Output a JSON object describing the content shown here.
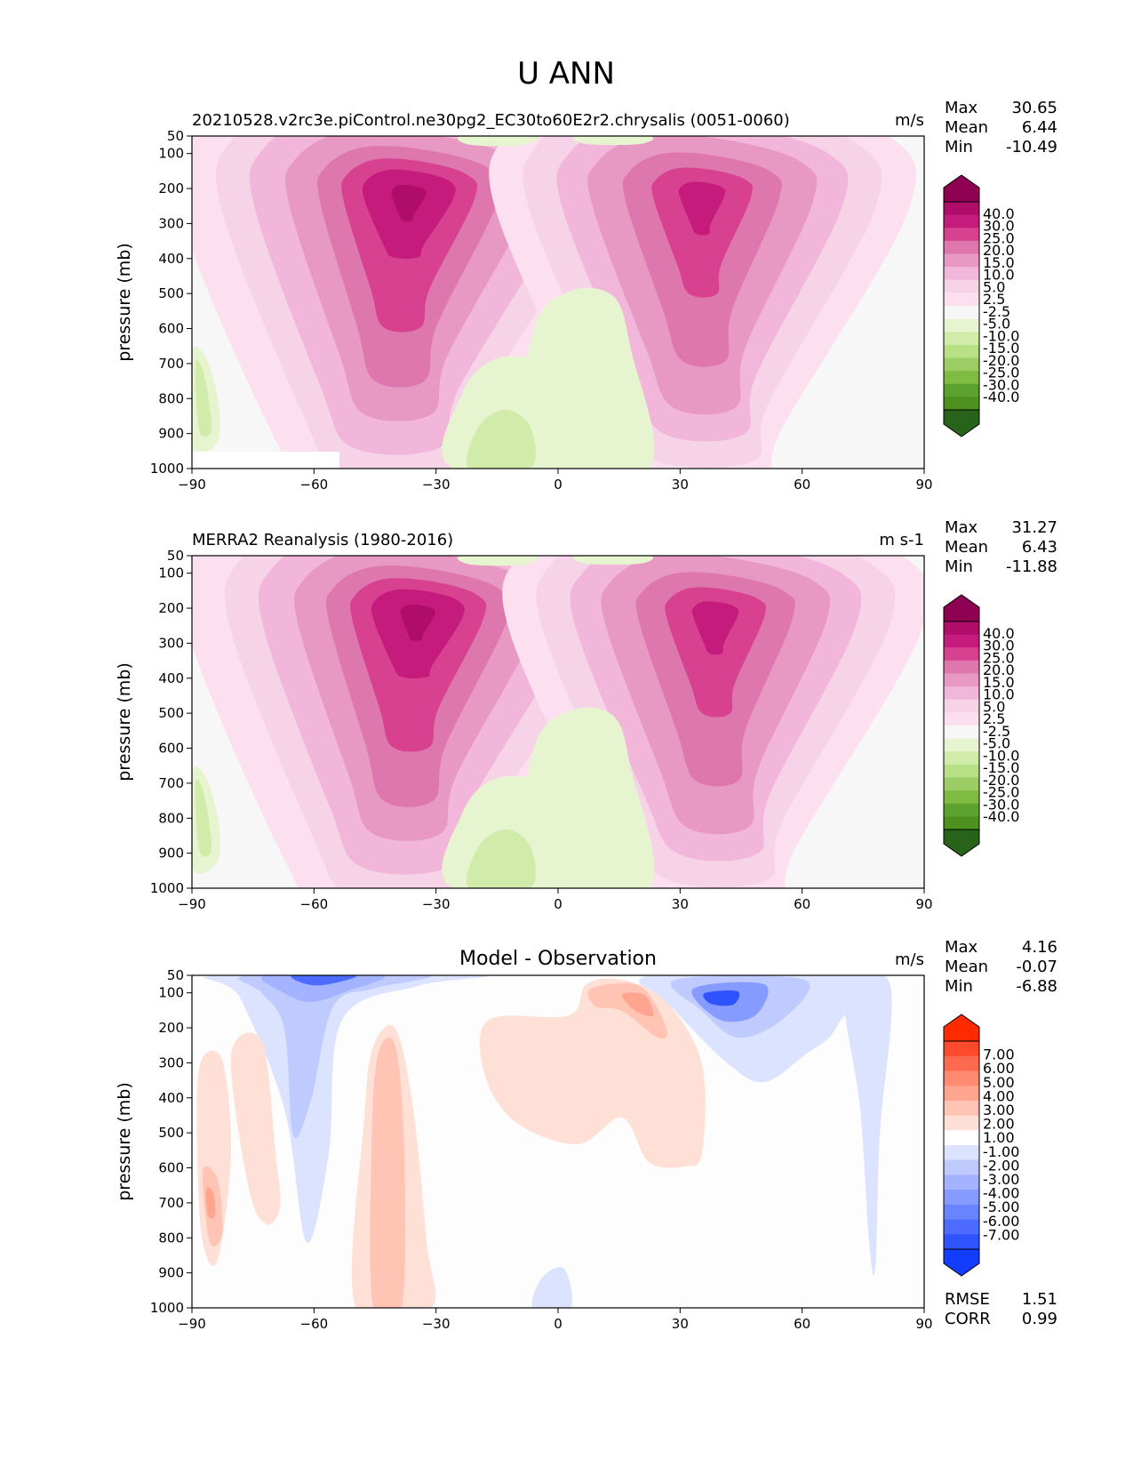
{
  "figure": {
    "title": "U ANN"
  },
  "chart_data": [
    {
      "type": "heatmap",
      "title": "20210528.v2rc3e.piControl.ne30pg2_EC30to60E2r2.chrysalis (0051-0060)",
      "units": "m/s",
      "ylabel": "pressure (mb)",
      "xlabel": "",
      "xlim": [
        -90,
        90
      ],
      "ylim": [
        1000,
        50
      ],
      "x_ticks": [
        "−90",
        "−60",
        "−30",
        "0",
        "30",
        "60",
        "90"
      ],
      "y_ticks": [
        "50",
        "100",
        "200",
        "300",
        "400",
        "500",
        "600",
        "700",
        "800",
        "900",
        "1000"
      ],
      "stats": [
        {
          "label": "Max",
          "value": "30.65"
        },
        {
          "label": "Mean",
          "value": "6.44"
        },
        {
          "label": "Min",
          "value": "-10.49"
        }
      ],
      "colorbar": {
        "levels": [
          "40.0",
          "30.0",
          "25.0",
          "20.0",
          "15.0",
          "10.0",
          "5.0",
          "2.5",
          "-2.5",
          "-5.0",
          "-10.0",
          "-15.0",
          "-20.0",
          "-25.0",
          "-30.0",
          "-40.0"
        ],
        "colors_top_to_bottom": [
          "#8e0152",
          "#b00d6b",
          "#c51b7d",
          "#d7418f",
          "#de77ae",
          "#e899c3",
          "#f1b6da",
          "#f7d3e8",
          "#fde0ef",
          "#f7f7f7",
          "#e6f5d0",
          "#d1ecaa",
          "#b8e186",
          "#9bcd64",
          "#7fbc41",
          "#5ba32e",
          "#4d9221",
          "#276419"
        ]
      },
      "grid": false
    },
    {
      "type": "heatmap",
      "title": "MERRA2 Reanalysis (1980-2016)",
      "units": "m s-1",
      "ylabel": "pressure (mb)",
      "xlabel": "",
      "xlim": [
        -90,
        90
      ],
      "ylim": [
        1000,
        50
      ],
      "x_ticks": [
        "−90",
        "−60",
        "−30",
        "0",
        "30",
        "60",
        "90"
      ],
      "y_ticks": [
        "50",
        "100",
        "200",
        "300",
        "400",
        "500",
        "600",
        "700",
        "800",
        "900",
        "1000"
      ],
      "stats": [
        {
          "label": "Max",
          "value": "31.27"
        },
        {
          "label": "Mean",
          "value": "6.43"
        },
        {
          "label": "Min",
          "value": "-11.88"
        }
      ],
      "colorbar": {
        "levels": [
          "40.0",
          "30.0",
          "25.0",
          "20.0",
          "15.0",
          "10.0",
          "5.0",
          "2.5",
          "-2.5",
          "-5.0",
          "-10.0",
          "-15.0",
          "-20.0",
          "-25.0",
          "-30.0",
          "-40.0"
        ],
        "colors_top_to_bottom": [
          "#8e0152",
          "#b00d6b",
          "#c51b7d",
          "#d7418f",
          "#de77ae",
          "#e899c3",
          "#f1b6da",
          "#f7d3e8",
          "#fde0ef",
          "#f7f7f7",
          "#e6f5d0",
          "#d1ecaa",
          "#b8e186",
          "#9bcd64",
          "#7fbc41",
          "#5ba32e",
          "#4d9221",
          "#276419"
        ]
      },
      "grid": false
    },
    {
      "type": "heatmap",
      "title": "Model - Observation",
      "units": "m/s",
      "ylabel": "pressure (mb)",
      "xlabel": "",
      "xlim": [
        -90,
        90
      ],
      "ylim": [
        1000,
        50
      ],
      "x_ticks": [
        "−90",
        "−60",
        "−30",
        "0",
        "30",
        "60",
        "90"
      ],
      "y_ticks": [
        "50",
        "100",
        "200",
        "300",
        "400",
        "500",
        "600",
        "700",
        "800",
        "900",
        "1000"
      ],
      "stats": [
        {
          "label": "Max",
          "value": "4.16"
        },
        {
          "label": "Mean",
          "value": "-0.07"
        },
        {
          "label": "Min",
          "value": "-6.88"
        }
      ],
      "bottom_stats": [
        {
          "label": "RMSE",
          "value": "1.51"
        },
        {
          "label": "CORR",
          "value": "0.99"
        }
      ],
      "colorbar": {
        "levels": [
          "7.00",
          "6.00",
          "5.00",
          "4.00",
          "3.00",
          "2.00",
          "1.00",
          "-1.00",
          "-2.00",
          "-3.00",
          "-4.00",
          "-5.00",
          "-6.00",
          "-7.00"
        ],
        "colors_top_to_bottom": [
          "#ff2a00",
          "#fe4a2c",
          "#fd6a4f",
          "#fe8b70",
          "#ffa48f",
          "#ffc4b3",
          "#ffe0d6",
          "#ffffff",
          "#dbe3ff",
          "#bfcbff",
          "#a3b3ff",
          "#859bff",
          "#6884ff",
          "#4c6cff",
          "#2f54ff",
          "#123dff"
        ]
      },
      "grid": false
    }
  ]
}
